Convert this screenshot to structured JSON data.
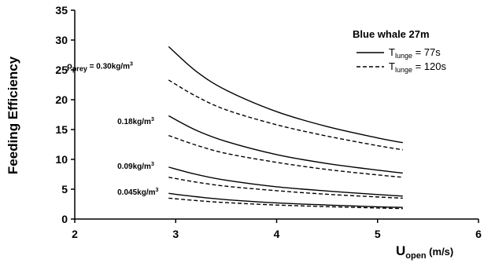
{
  "chart_data": {
    "type": "line",
    "title": "",
    "xlabel": {
      "main": "U",
      "sub": "open",
      "unit": " (m/s)"
    },
    "ylabel": "Feeding Efficiency",
    "xlim": [
      2,
      6
    ],
    "ylim": [
      0,
      35
    ],
    "xticks": [
      "2",
      "3",
      "4",
      "5",
      "6"
    ],
    "yticks": [
      "0",
      "5",
      "10",
      "15",
      "20",
      "25",
      "30",
      "35"
    ],
    "grid": false,
    "legend": {
      "title": "Blue whale 27m",
      "position": "top-right",
      "entries": [
        {
          "main": "T",
          "sub": "lunge",
          "rest": " = 77s",
          "style": "solid"
        },
        {
          "main": "T",
          "sub": "lunge",
          "rest": " = 120s",
          "style": "dashed"
        }
      ]
    },
    "annotations": [
      {
        "prefix": "ρ",
        "prefix_sub": "prey",
        "base": " = 0.30kg/m",
        "sup": "3",
        "x": 2.0,
        "y": 25.2
      },
      {
        "prefix": "",
        "prefix_sub": "",
        "base": "0.18kg/m",
        "sup": "3",
        "x": 2.5,
        "y": 15.9
      },
      {
        "prefix": "",
        "prefix_sub": "",
        "base": "0.09kg/m",
        "sup": "3",
        "x": 2.5,
        "y": 8.4
      },
      {
        "prefix": "",
        "prefix_sub": "",
        "base": "0.045kg/m",
        "sup": "3",
        "x": 2.5,
        "y": 4.1
      }
    ],
    "series": [
      {
        "style": "solid",
        "x": [
          2.93,
          3.2,
          3.5,
          4.0,
          4.5,
          5.0,
          5.25
        ],
        "y": [
          28.9,
          24.8,
          21.6,
          18.0,
          15.5,
          13.6,
          12.8
        ]
      },
      {
        "style": "dashed",
        "x": [
          2.93,
          3.2,
          3.5,
          4.0,
          4.5,
          5.0,
          5.25
        ],
        "y": [
          23.3,
          20.6,
          18.3,
          15.8,
          13.9,
          12.3,
          11.6
        ]
      },
      {
        "style": "solid",
        "x": [
          2.93,
          3.2,
          3.5,
          4.0,
          4.5,
          5.0,
          5.25
        ],
        "y": [
          17.3,
          14.9,
          13.0,
          10.8,
          9.3,
          8.2,
          7.7
        ]
      },
      {
        "style": "dashed",
        "x": [
          2.93,
          3.2,
          3.5,
          4.0,
          4.5,
          5.0,
          5.25
        ],
        "y": [
          14.0,
          12.4,
          11.0,
          9.5,
          8.3,
          7.4,
          7.0
        ]
      },
      {
        "style": "solid",
        "x": [
          2.93,
          3.2,
          3.5,
          4.0,
          4.5,
          5.0,
          5.25
        ],
        "y": [
          8.7,
          7.5,
          6.5,
          5.4,
          4.7,
          4.1,
          3.85
        ]
      },
      {
        "style": "dashed",
        "x": [
          2.93,
          3.2,
          3.5,
          4.0,
          4.5,
          5.0,
          5.25
        ],
        "y": [
          7.0,
          6.2,
          5.5,
          4.75,
          4.15,
          3.7,
          3.5
        ]
      },
      {
        "style": "solid",
        "x": [
          2.93,
          3.2,
          3.5,
          4.0,
          4.5,
          5.0,
          5.25
        ],
        "y": [
          4.3,
          3.75,
          3.25,
          2.7,
          2.35,
          2.05,
          1.95
        ]
      },
      {
        "style": "dashed",
        "x": [
          2.93,
          3.2,
          3.5,
          4.0,
          4.5,
          5.0,
          5.25
        ],
        "y": [
          3.5,
          3.1,
          2.75,
          2.35,
          2.08,
          1.85,
          1.75
        ]
      }
    ]
  }
}
